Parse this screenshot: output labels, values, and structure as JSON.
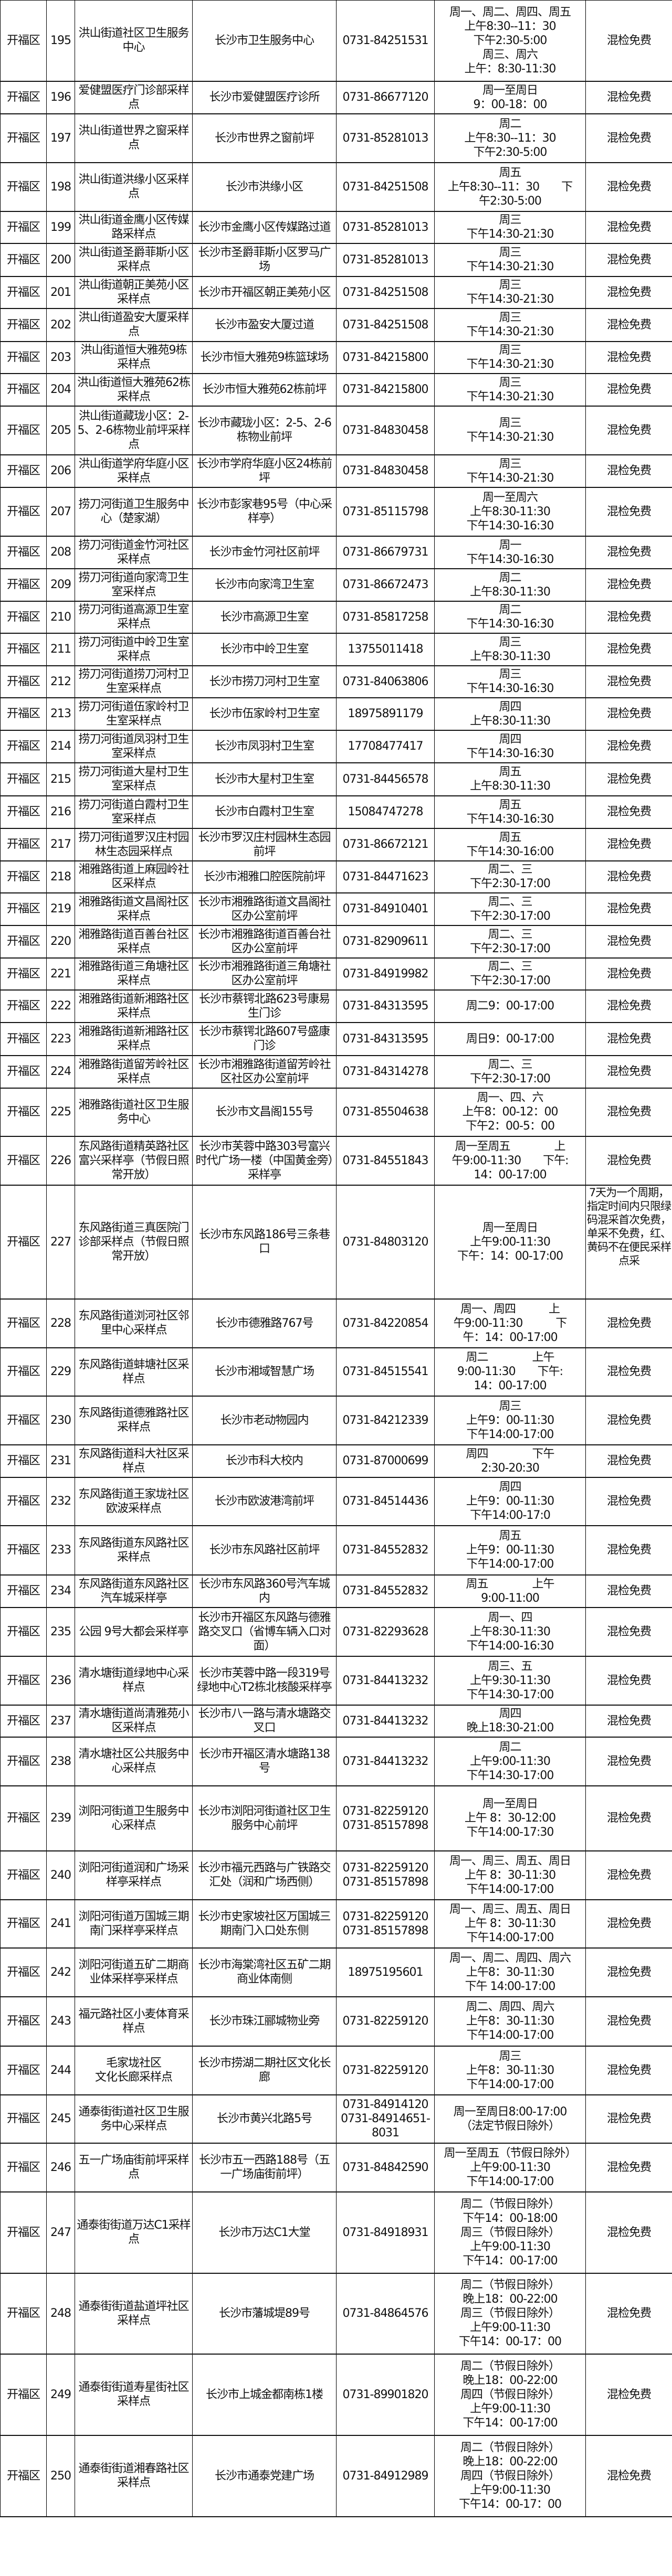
{
  "table": {
    "rows": [
      {
        "district": "开福区",
        "no": "195",
        "name": "洪山街道社区卫生服务中心",
        "address": "长沙市卫生服务中心",
        "phone": "0731-84251531",
        "hours": "周一、周二、周四、周五\n上午8:30--11：30\n下午2:30-5:00\n周三、周六\n上午：8:30-11:30",
        "note": "混检免费"
      },
      {
        "district": "开福区",
        "no": "196",
        "name": "爱健盟医疗门诊部采样点",
        "address": "长沙市爱健盟医疗诊所",
        "phone": "0731-86677120",
        "hours": "周一至周日\n9：00-18：00",
        "note": "混检免费"
      },
      {
        "district": "开福区",
        "no": "197",
        "name": "洪山街道世界之窗采样点",
        "address": "长沙市世界之窗前坪",
        "phone": "0731-85281013",
        "hours": "周二\n上午8:30--11：30\n下午2:30-5:00",
        "note": "混检免费"
      },
      {
        "district": "开福区",
        "no": "198",
        "name": "洪山街道洪缘小区采样点",
        "address": "长沙市洪缘小区",
        "phone": "0731-84251508",
        "hours": "周五\n上午8:30--11：30　　下\n午2:30-5:00",
        "note": "混检免费"
      },
      {
        "district": "开福区",
        "no": "199",
        "name": "洪山街道金鹰小区传媒路采样点",
        "address": "长沙市金鹰小区传媒路过道",
        "phone": "0731-85281013",
        "hours": "周三\n下午14:30-21:30",
        "note": "混检免费"
      },
      {
        "district": "开福区",
        "no": "200",
        "name": "洪山街道圣爵菲斯小区采样点",
        "address": "长沙市圣爵菲斯小区罗马广场",
        "phone": "0731-85281013",
        "hours": "周三\n下午14:30-21:30",
        "note": "混检免费"
      },
      {
        "district": "开福区",
        "no": "201",
        "name": "洪山街道朝正美苑小区采样点",
        "address": "长沙市开福区朝正美苑小区",
        "phone": "0731-84251508",
        "hours": "周三\n下午14:30-21:30",
        "note": "混检免费"
      },
      {
        "district": "开福区",
        "no": "202",
        "name": "洪山街道盈安大厦采样点",
        "address": "长沙市盈安大厦过道",
        "phone": "0731-84251508",
        "hours": "周三\n下午14:30-21:30",
        "note": "混检免费"
      },
      {
        "district": "开福区",
        "no": "203",
        "name": "洪山街道恒大雅苑9栋采样点",
        "address": "长沙市恒大雅苑9栋篮球场",
        "phone": "0731-84215800",
        "hours": "周三\n下午14:30-21:30",
        "note": "混检免费"
      },
      {
        "district": "开福区",
        "no": "204",
        "name": "洪山街道恒大雅苑62栋采样点",
        "address": "长沙市恒大雅苑62栋前坪",
        "phone": "0731-84215800",
        "hours": "周三\n下午14:30-21:30",
        "note": "混检免费"
      },
      {
        "district": "开福区",
        "no": "205",
        "name": "洪山街道藏珑小区：2-5、2-6栋物业前坪采样点",
        "address": "长沙市藏珑小区：2-5、2-6栋物业前坪",
        "phone": "0731-84830458",
        "hours": "周三\n下午14:30-21:30",
        "note": "混检免费"
      },
      {
        "district": "开福区",
        "no": "206",
        "name": "洪山街道学府华庭小区采样点",
        "address": "长沙市学府华庭小区24栋前坪",
        "phone": "0731-84830458",
        "hours": "周三\n下午14:30-21:30",
        "note": "混检免费"
      },
      {
        "district": "开福区",
        "no": "207",
        "name": "捞刀河街道卫生服务中心（楚家湖）",
        "address": "长沙市彭家巷95号（中心采样亭）",
        "phone": "0731-85115798",
        "hours": "周一至周六\n上午8:30-11:30\n下午14:30-16:30",
        "note": "混检免费"
      },
      {
        "district": "开福区",
        "no": "208",
        "name": "捞刀河街道金竹河社区采样点",
        "address": "长沙市金竹河社区前坪",
        "phone": "0731-86679731",
        "hours": "周一\n下午14:30-16:30",
        "note": "混检免费"
      },
      {
        "district": "开福区",
        "no": "209",
        "name": "捞刀河街道向家湾卫生室采样点",
        "address": "长沙市向家湾卫生室",
        "phone": "0731-86672473",
        "hours": "周二\n上午8:30-11:30",
        "note": "混检免费"
      },
      {
        "district": "开福区",
        "no": "210",
        "name": "捞刀河街道高源卫生室采样点",
        "address": "长沙市高源卫生室",
        "phone": "0731-85817258",
        "hours": "周二\n下午14:30-16:30",
        "note": "混检免费"
      },
      {
        "district": "开福区",
        "no": "211",
        "name": "捞刀河街道中岭卫生室采样点",
        "address": "长沙市中岭卫生室",
        "phone": "13755011418",
        "hours": "周三\n上午8:30-11:30",
        "note": "混检免费"
      },
      {
        "district": "开福区",
        "no": "212",
        "name": "捞刀河街道捞刀河村卫生室采样点",
        "address": "长沙市捞刀河村卫生室",
        "phone": "0731-84063806",
        "hours": "周三\n下午14:30-16:30",
        "note": "混检免费"
      },
      {
        "district": "开福区",
        "no": "213",
        "name": "捞刀河街道伍家岭村卫生室采样点",
        "address": "长沙市伍家岭村卫生室",
        "phone": "18975891179",
        "hours": "周四\n上午8:30-11:30",
        "note": "混检免费"
      },
      {
        "district": "开福区",
        "no": "214",
        "name": "捞刀河街道凤羽村卫生室采样点",
        "address": "长沙市凤羽村卫生室",
        "phone": "17708477417",
        "hours": "周四\n下午14:30-16:30",
        "note": "混检免费"
      },
      {
        "district": "开福区",
        "no": "215",
        "name": "捞刀河街道大星村卫生室采样点",
        "address": "长沙市大星村卫生室",
        "phone": "0731-84456578",
        "hours": "周五\n上午8:30-11:30",
        "note": "混检免费"
      },
      {
        "district": "开福区",
        "no": "216",
        "name": "捞刀河街道白霞村卫生室采样点",
        "address": "长沙市白霞村卫生室",
        "phone": "15084747278",
        "hours": "周五\n下午14:30-16:30",
        "note": "混检免费"
      },
      {
        "district": "开福区",
        "no": "217",
        "name": "捞刀河街道罗汉庄村园林生态园采样点",
        "address": "长沙市罗汉庄村园林生态园前坪",
        "phone": "0731-86672121",
        "hours": "周五\n下午14:30-16:00",
        "note": "混检免费"
      },
      {
        "district": "开福区",
        "no": "218",
        "name": "湘雅路街道上麻园岭社区采样点",
        "address": "长沙市湘雅口腔医院前坪",
        "phone": "0731-84471623",
        "hours": "周二、三\n下午2:30-17:00",
        "note": "混检免费"
      },
      {
        "district": "开福区",
        "no": "219",
        "name": "湘雅路街道文昌阁社区采样点",
        "address": "长沙市湘雅路街道文昌阁社区办公室前坪",
        "phone": "0731-84910401",
        "hours": "周二、三\n下午2:30-17:00",
        "note": "混检免费"
      },
      {
        "district": "开福区",
        "no": "220",
        "name": "湘雅路街道百善台社区采样点",
        "address": "长沙市湘雅路街道百善台社区办公室前坪",
        "phone": "0731-82909611",
        "hours": "周二、三\n下午2:30-17:00",
        "note": "混检免费"
      },
      {
        "district": "开福区",
        "no": "221",
        "name": "湘雅路街道三角塘社区采样点",
        "address": "长沙市湘雅路街道三角塘社区办公室前坪",
        "phone": "0731-84919982",
        "hours": "周二、三\n下午2:30-17:00",
        "note": "混检免费"
      },
      {
        "district": "开福区",
        "no": "222",
        "name": "湘雅路街道新湘路社区采样点",
        "address": "长沙市蔡锷北路623号康易生门诊",
        "phone": "0731-84313595",
        "hours": "周二9：00-17:00",
        "note": "混检免费"
      },
      {
        "district": "开福区",
        "no": "223",
        "name": "湘雅路街道新湘路社区采样点",
        "address": "长沙市蔡锷北路607号盛康门诊",
        "phone": "0731-84313595",
        "hours": "周日9：00-17:00",
        "note": "混检免费"
      },
      {
        "district": "开福区",
        "no": "224",
        "name": "湘雅路街道留芳岭社区采样点",
        "address": "长沙市湘雅路街道留芳岭社区社区办公室前坪",
        "phone": "0731-84314278",
        "hours": "周二、三\n下午2:30-17:00",
        "note": "混检免费"
      },
      {
        "district": "开福区",
        "no": "225",
        "name": "湘雅路街道社区卫生服务中心",
        "address": "长沙市文昌阁155号",
        "phone": "0731-85504638",
        "hours": "周一、四、六\n上午8：00-12：00\n下午2：00-5：00",
        "note": "混检免费"
      },
      {
        "district": "开福区",
        "no": "226",
        "name": "东风路街道精英路社区富兴采样亭（节假日照常开放）",
        "address": "长沙市芙蓉中路303号富兴时代广场一楼（中国黄金旁）采样亭",
        "phone": "0731-84551843",
        "hours": "周一至周五　　　　上\n午9:00-11:30　　下午:\n14：00-17:00",
        "note": "混检免费"
      },
      {
        "district": "开福区",
        "no": "227",
        "name": "东风路街道三真医院门诊部采样点（节假日照常开放）",
        "address": "长沙市东风路186号三条巷口",
        "phone": "0731-84803120",
        "hours": "周一至周日\n上午9:00-11:30\n下午：14：00-17:00",
        "note": "7天为一个周期，指定时间内只限绿码混采首次免费，单采不免费，红、黄码不在便民采样点采"
      },
      {
        "district": "开福区",
        "no": "228",
        "name": "东风路街道浏河社区邻里中心采样点",
        "address": "长沙市德雅路767号",
        "phone": "0731-84220854",
        "hours": "周一、周四　　　上\n午9:00-11:30　　　下\n午：14：00-17:00",
        "note": "混检免费"
      },
      {
        "district": "开福区",
        "no": "229",
        "name": "东风路街道蚌塘社区采样点",
        "address": "长沙市湘域智慧广场",
        "phone": "0731-84515541",
        "hours": "周二　　　　上午\n9:00-11:30　　下午:\n14：00-17:00",
        "note": "混检免费"
      },
      {
        "district": "开福区",
        "no": "230",
        "name": "东风路街道德雅路社区采样点",
        "address": "长沙市老动物园内",
        "phone": "0731-84212339",
        "hours": "周三\n上午9：00-11:30\n下午14:00-17:00",
        "note": "混检免费"
      },
      {
        "district": "开福区",
        "no": "231",
        "name": "东风路街道科大社区采样点",
        "address": "长沙市科大校内",
        "phone": "0731-87000699",
        "hours": "周四　　　　下午\n2:30-20:30",
        "note": "混检免费"
      },
      {
        "district": "开福区",
        "no": "232",
        "name": "东风路街道王家垅社区欧波采样点",
        "address": "长沙市欧波港湾前坪",
        "phone": "0731-84514436",
        "hours": "周四\n上午9：00-11:30\n下午14:00-17:0",
        "note": "混检免费"
      },
      {
        "district": "开福区",
        "no": "233",
        "name": "东风路街道东风路社区采样点",
        "address": "长沙市东风路社区前坪",
        "phone": "0731-84552832",
        "hours": "周五\n上午9：00-11:30\n下午14:00-17:00",
        "note": "混检免费"
      },
      {
        "district": "开福区",
        "no": "234",
        "name": "东风路街道东风路社区汽车城采样亭",
        "address": "长沙市东风路360号汽车城内",
        "phone": "0731-84552832",
        "hours": "周五　　　　上午\n9:00-11:00",
        "note": "混检免费"
      },
      {
        "district": "开福区",
        "no": "235",
        "name": "公园 9号大都会采样亭",
        "address": "长沙市开福区东风路与德雅路交叉口（省博车辆入口对面）",
        "phone": "0731-82293628",
        "hours": "周一、四\n上午8:30-11:30\n下午14:00-16:30",
        "note": "混检免费"
      },
      {
        "district": "开福区",
        "no": "236",
        "name": "清水塘街道绿地中心采样点",
        "address": "长沙市芙蓉中路一段319号绿地中心T2栋北核酸采样亭",
        "phone": "0731-84413232",
        "hours": "周三、五\n上午9:30-11:30\n下午14:30-17:00",
        "note": "混检免费"
      },
      {
        "district": "开福区",
        "no": "237",
        "name": "清水塘街道尚清雅苑小区采样点",
        "address": "长沙市八一路与清水塘路交叉口",
        "phone": "0731-84413232",
        "hours": "周四\n晚上18:30-21:00",
        "note": "混检免费"
      },
      {
        "district": "开福区",
        "no": "238",
        "name": "清水塘社区公共服务中心采样点",
        "address": "长沙市开福区清水塘路138号",
        "phone": "0731-84413232",
        "hours": "周二\n上午9:00-11:30\n下午14:30-17:00",
        "note": "混检免费"
      },
      {
        "district": "开福区",
        "no": "239",
        "name": "浏阳河街道卫生服务中心采样点",
        "address": "长沙市浏阳河街道社区卫生服务中心前坪",
        "phone": "0731-82259120\n0731-85157898",
        "hours": "周一至周日\n上午 8：30-12:00\n下午14:00-17:30",
        "note": "混检免费"
      },
      {
        "district": "开福区",
        "no": "240",
        "name": "浏阳河街道润和广场采样亭采样点",
        "address": "长沙市福元西路与广铁路交汇处（润和广场西侧）",
        "phone": "0731-82259120\n0731-85157898",
        "hours": "周一、周三、周五、周日\n上午 8：30-11:30\n下午14:00-17:00",
        "note": "混检免费"
      },
      {
        "district": "开福区",
        "no": "241",
        "name": "浏阳河街道万国城三期南门采样亭采样点",
        "address": "长沙市史家坡社区万国城三期南门入口处东侧",
        "phone": "0731-82259120\n0731-85157898",
        "hours": "周一、周三、周五、周日\n上午 8：30-11:30\n下午14:00-17:00",
        "note": "混检免费"
      },
      {
        "district": "开福区",
        "no": "242",
        "name": "浏阳河街道五矿二期商业体采样亭采样点",
        "address": "长沙市海棠湾社区五矿二期商业体南侧",
        "phone": "18975195601",
        "hours": "周一、周二、周四、周六\n上午8：30-11:30\n下午 14:00-17:00",
        "note": "混检免费"
      },
      {
        "district": "开福区",
        "no": "243",
        "name": "福元路社区小麦体育采样点",
        "address": "长沙市珠江郦城物业旁",
        "phone": "0731-82259120",
        "hours": "周二、周四、周六\n上午8：30-11:30\n下午14:00-17:00",
        "note": "混检免费"
      },
      {
        "district": "开福区",
        "no": "244",
        "name": "毛家垅社区\n文化长廊采样点",
        "address": "长沙市捞湖二期社区文化长廊",
        "phone": "0731-82259120",
        "hours": "周三\n上午8：30-11:30\n下午14:00-17:00",
        "note": "混检免费"
      },
      {
        "district": "开福区",
        "no": "245",
        "name": "通泰街街道社区卫生服务中心采样点",
        "address": "长沙市黄兴北路5号",
        "phone": "0731-84914120\n0731-84914651-8031",
        "hours": "周一至周日8:00-17:00\n（法定节假日除外）",
        "note": "混检免费"
      },
      {
        "district": "开福区",
        "no": "246",
        "name": "五一广场庙街前坪采样点",
        "address": "长沙市五一西路188号（五一广场庙街前坪）",
        "phone": "0731-84842590",
        "hours": "周一至周五（节假日除外）\n上午9:00-11:30\n下午14:00-17:00",
        "note": "混检免费"
      },
      {
        "district": "开福区",
        "no": "247",
        "name": "通泰街街道万达C1采样点",
        "address": "长沙市万达C1大堂",
        "phone": "0731-84918931",
        "hours": "周二（节假日除外）\n下午14：00-18:00\n周三（节假日除外）\n上午9:00-11:30\n下午14：00-17:00",
        "note": "混检免费"
      },
      {
        "district": "开福区",
        "no": "248",
        "name": "通泰街街道盐道坪社区采样点",
        "address": "长沙市藩城堤89号",
        "phone": "0731-84864576",
        "hours": "周二（节假日除外）\n晚上18：00-22:00\n周三（节假日除外）\n上午9:00-11:30\n下午14：00-17：00",
        "note": "混检免费"
      },
      {
        "district": "开福区",
        "no": "249",
        "name": "通泰街街道寿星街社区采样点",
        "address": "长沙市上城金都南栋1楼",
        "phone": "0731-89901820",
        "hours": "周二（节假日除外）\n晚上18：00-22:00\n周四（节假日除外）\n上午9:00-11:30\n下午14：00-17:00",
        "note": "混检免费"
      },
      {
        "district": "开福区",
        "no": "250",
        "name": "通泰街街道湘春路社区采样点",
        "address": "长沙市通泰党建广场",
        "phone": "0731-84912989",
        "hours": "周二（节假日除外）\n晚上18：00-22:00\n周四（节假日除外）\n上午9:00-11:30\n下午14：00-17：00",
        "note": "混检免费"
      }
    ]
  }
}
